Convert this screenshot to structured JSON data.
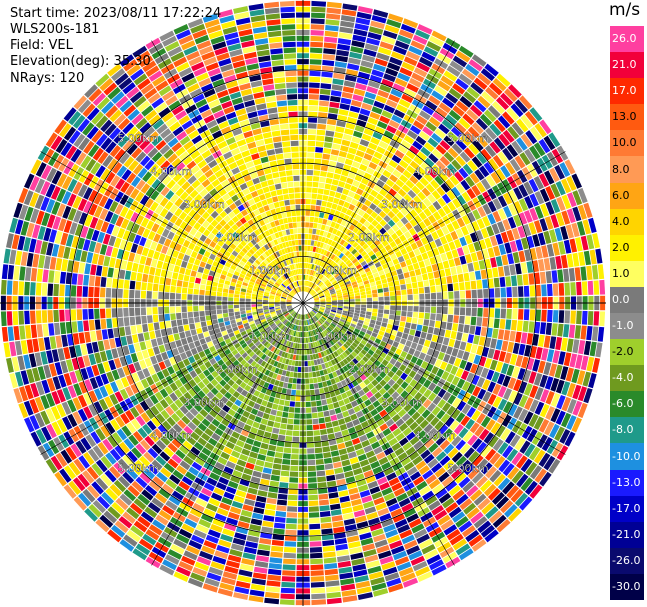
{
  "info": {
    "start_time": "Start time: 2023/08/11 17:22:24",
    "station": "WLS200s-181",
    "field": "Field: VEL",
    "elevation": "Elevation(deg): 35.30",
    "nrays": "NRays: 120"
  },
  "colorbar": {
    "unit": "m/s",
    "levels": [
      {
        "label": "26.0",
        "color": "#ff3fa0"
      },
      {
        "label": "21.0",
        "color": "#f2003a"
      },
      {
        "label": "17.0",
        "color": "#ff2a00"
      },
      {
        "label": "13.0",
        "color": "#ff5a10"
      },
      {
        "label": "10.0",
        "color": "#ff7a33"
      },
      {
        "label": "8.0",
        "color": "#ff9a55"
      },
      {
        "label": "6.0",
        "color": "#ffa514"
      },
      {
        "label": "4.0",
        "color": "#ffd400"
      },
      {
        "label": "2.0",
        "color": "#fff100"
      },
      {
        "label": "1.0",
        "color": "#ffff60"
      },
      {
        "label": "0.0",
        "color": "#7a7a7a"
      },
      {
        "label": "-1.0",
        "color": "#8c8c8c"
      },
      {
        "label": "-2.0",
        "color": "#9fcf2c"
      },
      {
        "label": "-4.0",
        "color": "#6f9a1f"
      },
      {
        "label": "-6.0",
        "color": "#2a8a2a"
      },
      {
        "label": "-8.0",
        "color": "#1f9a8a"
      },
      {
        "label": "-10.0",
        "color": "#1e90e0"
      },
      {
        "label": "-13.0",
        "color": "#1a1aff"
      },
      {
        "label": "-17.0",
        "color": "#0000c8"
      },
      {
        "label": "-21.0",
        "color": "#000095"
      },
      {
        "label": "-26.0",
        "color": "#0a0a6e"
      },
      {
        "label": "-30.0",
        "color": "#000048"
      }
    ]
  },
  "chart_data": {
    "type": "heatmap",
    "projection": "polar-ppi",
    "field": "VEL",
    "units": "m/s",
    "n_rays": 120,
    "elevation_deg": 35.3,
    "max_range_km": 6.5,
    "range_ring_labels": [
      "1.00km",
      "2.00km",
      "3.00km",
      "4.00km",
      "5.00km"
    ],
    "range_rings_km": [
      1,
      2,
      3,
      4,
      5
    ],
    "grid": true,
    "legend_position": "right"
  }
}
